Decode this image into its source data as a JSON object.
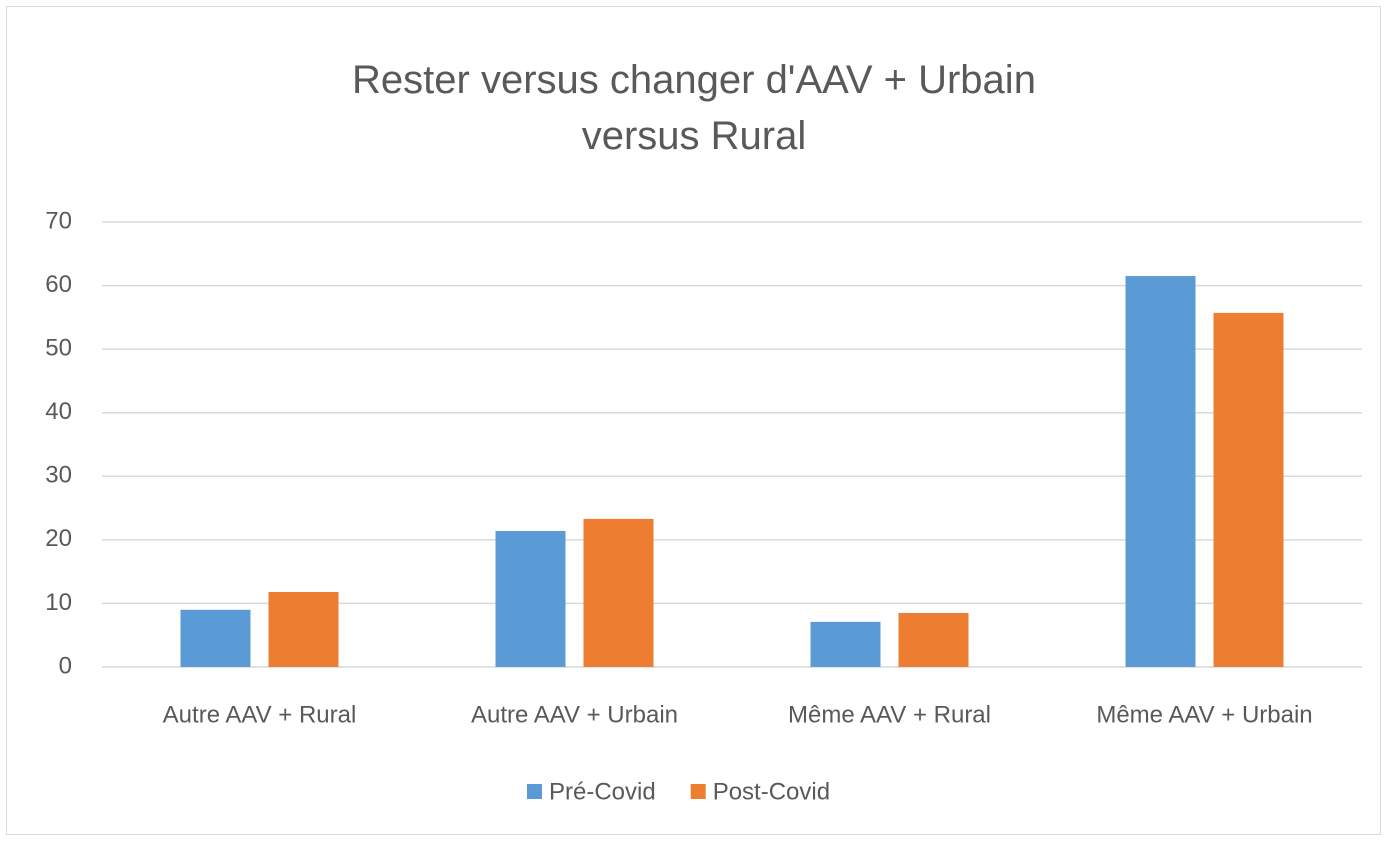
{
  "chart_data": {
    "type": "bar",
    "title": "Rester versus changer d'AAV + Urbain versus Rural",
    "categories": [
      "Autre AAV + Rural",
      "Autre AAV + Urbain",
      "Même AAV + Rural",
      "Même AAV + Urbain"
    ],
    "series": [
      {
        "name": "Pré-Covid",
        "color": "#5b9bd5",
        "values": [
          9.0,
          21.4,
          7.1,
          61.5
        ]
      },
      {
        "name": "Post-Covid",
        "color": "#ed7d31",
        "values": [
          11.8,
          23.3,
          8.5,
          55.7
        ]
      }
    ],
    "ylim": [
      0,
      70
    ],
    "yticks": [
      0,
      10,
      20,
      30,
      40,
      50,
      60,
      70
    ],
    "grid": true,
    "legend": "bottom"
  }
}
